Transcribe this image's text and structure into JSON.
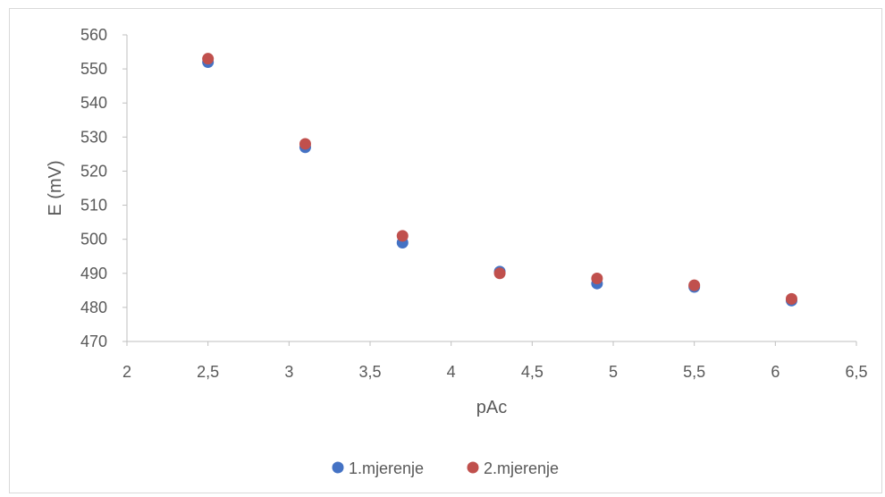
{
  "chart_data": {
    "type": "scatter",
    "title": "",
    "xlabel": "pAc",
    "ylabel": "E (mV)",
    "xlim": [
      2,
      6.5
    ],
    "ylim": [
      470,
      560
    ],
    "x_ticks": [
      "2",
      "2,5",
      "3",
      "3,5",
      "4",
      "4,5",
      "5",
      "5,5",
      "6",
      "6,5"
    ],
    "y_ticks": [
      "470",
      "480",
      "490",
      "500",
      "510",
      "520",
      "530",
      "540",
      "550",
      "560"
    ],
    "grid": false,
    "legend_position": "bottom",
    "series": [
      {
        "name": "1.mjerenje",
        "color": "#4472c4",
        "x": [
          2.5,
          3.1,
          3.7,
          4.3,
          4.9,
          5.5,
          6.1
        ],
        "y": [
          552,
          527,
          499,
          490.5,
          487,
          486,
          482
        ]
      },
      {
        "name": "2.mjerenje",
        "color": "#c0504d",
        "x": [
          2.5,
          3.1,
          3.7,
          4.3,
          4.9,
          5.5,
          6.1
        ],
        "y": [
          553,
          528,
          501,
          490,
          488.5,
          486.5,
          482.5
        ]
      }
    ]
  }
}
